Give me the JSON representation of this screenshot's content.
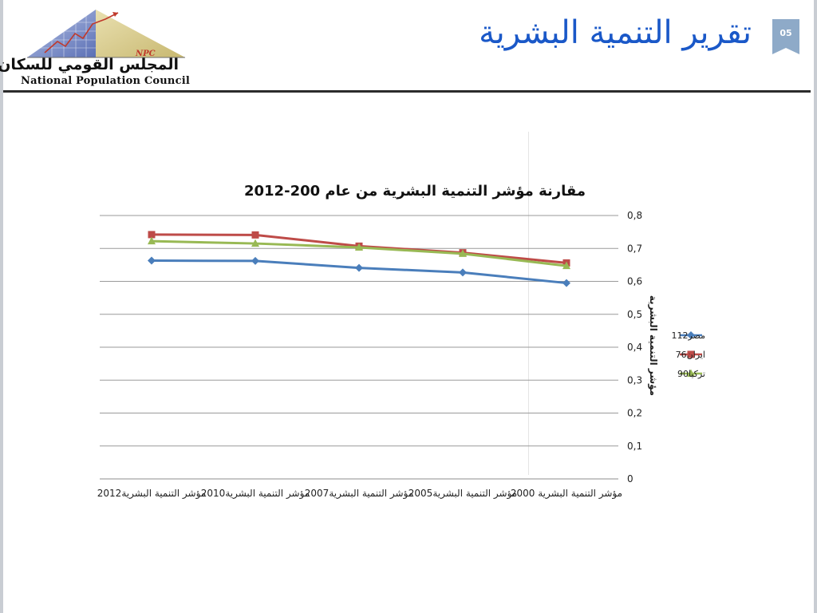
{
  "header": {
    "title": "تقرير التنمية البشرية",
    "page_number": "05",
    "logo": {
      "name_ar": "المجلس القومي للسكان",
      "name_en": "National Population Council",
      "abbr": "NPC"
    }
  },
  "colors": {
    "title": "#1a58c8",
    "badge": "#8eaac8",
    "header_line": "#2b2b2b"
  },
  "chart_data": {
    "type": "line",
    "title": "مقارنة مؤشر التنمية البشرية من عام 200-2012",
    "ylabel": "مؤشر التنمية البشرية",
    "xlabel": "",
    "categories": [
      "مؤشر التنمية البشرية 2000",
      "مؤشر التنمية البشرية2005",
      "مؤشر التنمية البشرية2007",
      "مؤشر التنمية البشرية2010",
      "مؤشر التنمية البشرية2012"
    ],
    "x_axis_reversed": true,
    "y_axis_position": "right",
    "ylim": [
      0,
      0.8
    ],
    "yticks": [
      "0",
      "0,1",
      "0,2",
      "0,3",
      "0,4",
      "0,5",
      "0,6",
      "0,7",
      "0,8"
    ],
    "grid": true,
    "legend_position": "right",
    "series": [
      {
        "name": "مصر112",
        "color": "#4a7ebb",
        "marker": "diamond",
        "values": [
          0.595,
          0.627,
          0.641,
          0.662,
          0.663
        ]
      },
      {
        "name": "ايران76",
        "color": "#be4b48",
        "marker": "square",
        "values": [
          0.656,
          0.687,
          0.707,
          0.741,
          0.742
        ]
      },
      {
        "name": "تركيا90",
        "color": "#98b954",
        "marker": "triangle",
        "values": [
          0.647,
          0.684,
          0.703,
          0.715,
          0.722
        ]
      }
    ]
  }
}
